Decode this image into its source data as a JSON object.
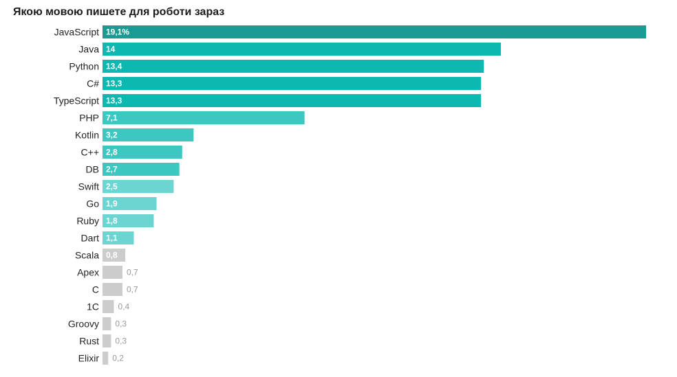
{
  "chart_data": {
    "type": "bar",
    "orientation": "horizontal",
    "title": "Якою мовою пишете для роботи зараз",
    "grid": false,
    "legend": "none",
    "xlim": [
      0,
      19.1
    ],
    "categories": [
      "JavaScript",
      "Java",
      "Python",
      "C#",
      "TypeScript",
      "PHP",
      "Kotlin",
      "C++",
      "DB",
      "Swift",
      "Go",
      "Ruby",
      "Dart",
      "Scala",
      "Apex",
      "C",
      "1C",
      "Groovy",
      "Rust",
      "Elixir"
    ],
    "values": [
      19.1,
      14,
      13.4,
      13.3,
      13.3,
      7.1,
      3.2,
      2.8,
      2.7,
      2.5,
      1.9,
      1.8,
      1.1,
      0.8,
      0.7,
      0.7,
      0.4,
      0.3,
      0.3,
      0.2
    ],
    "value_labels": [
      "19,1%",
      "14",
      "13,4",
      "13,3",
      "13,3",
      "7,1",
      "3,2",
      "2,8",
      "2,7",
      "2,5",
      "1,9",
      "1,8",
      "1,1",
      "0,8",
      "0,7",
      "0,7",
      "0,4",
      "0,3",
      "0,3",
      "0,2"
    ],
    "colors": [
      "#199a92",
      "#0db8b0",
      "#0db8b0",
      "#0db8b0",
      "#0db8b0",
      "#3cc7c1",
      "#3cc7c1",
      "#3cc7c1",
      "#3cc7c1",
      "#6bd6d1",
      "#6bd6d1",
      "#6bd6d1",
      "#6bd6d1",
      "#cccccc",
      "#cccccc",
      "#cccccc",
      "#cccccc",
      "#cccccc",
      "#cccccc",
      "#cccccc"
    ]
  }
}
